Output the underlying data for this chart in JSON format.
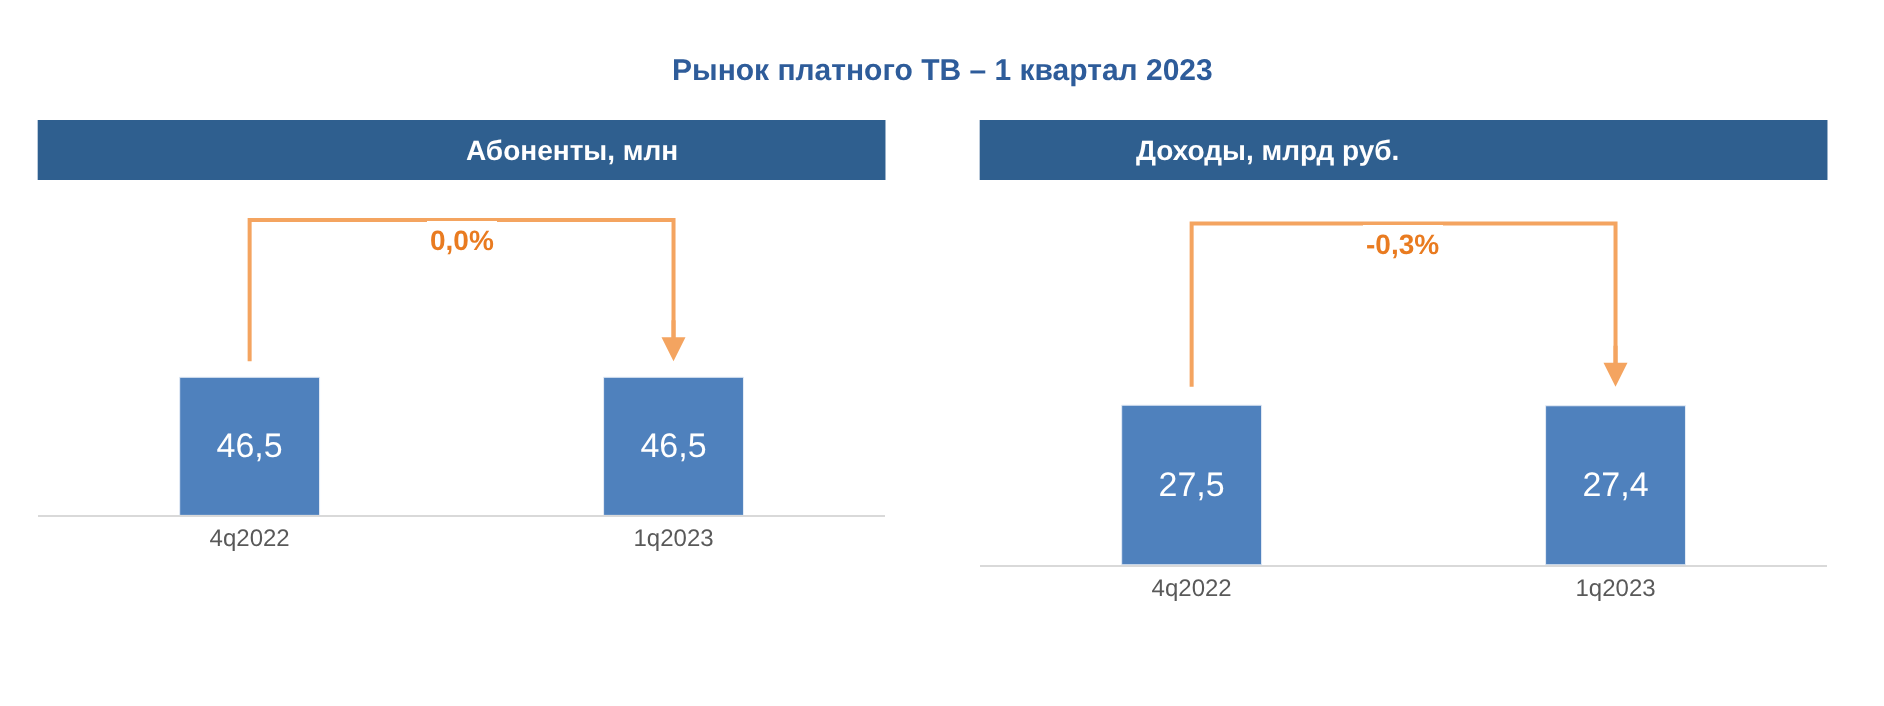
{
  "chart_data": [
    {
      "type": "other",
      "title": "Рынок платного ТВ – 1 квартал 2023"
    },
    {
      "type": "bar",
      "title": "Абоненты, млн",
      "categories": [
        "4q2022",
        "1q2023"
      ],
      "values": [
        46.5,
        46.5
      ],
      "value_labels": [
        "46,5",
        "46,5"
      ],
      "color": "#4f81bd",
      "annotations": [
        "0,0%"
      ]
    },
    {
      "type": "bar",
      "title": "Доходы, млрд руб.",
      "categories": [
        "4q2022",
        "1q2023"
      ],
      "values": [
        27.5,
        27.4
      ],
      "value_labels": [
        "27,5",
        "27,4"
      ],
      "color": "#4f81bd",
      "annotations": [
        "-0,3%"
      ]
    }
  ]
}
